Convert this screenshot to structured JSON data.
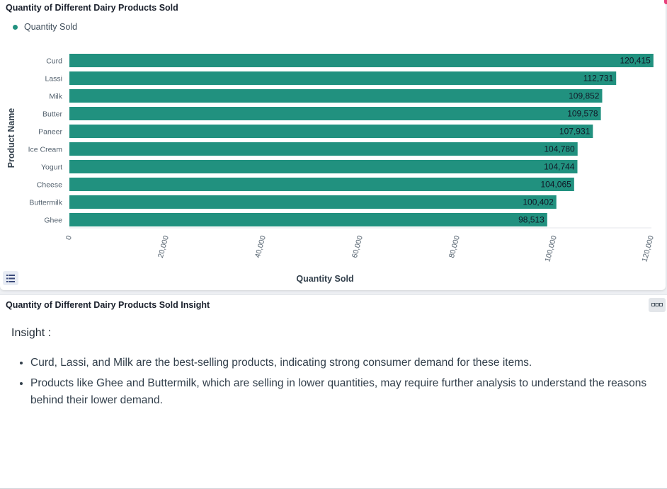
{
  "chart_panel": {
    "title": "Quantity of Different Dairy Products Sold"
  },
  "chart_data": {
    "type": "bar",
    "orientation": "horizontal",
    "title": "Quantity of Different Dairy Products Sold",
    "xlabel": "Quantity Sold",
    "ylabel": "Product Name",
    "categories": [
      "Curd",
      "Lassi",
      "Milk",
      "Butter",
      "Paneer",
      "Ice Cream",
      "Yogurt",
      "Cheese",
      "Buttermilk",
      "Ghee"
    ],
    "series": [
      {
        "name": "Quantity Sold",
        "values": [
          120415,
          112731,
          109852,
          109578,
          107931,
          104780,
          104744,
          104065,
          100402,
          98513
        ],
        "labels": [
          "120,415",
          "112,731",
          "109,852",
          "109,578",
          "107,931",
          "104,780",
          "104,744",
          "104,065",
          "100,402",
          "98,513"
        ]
      }
    ],
    "xlim": [
      0,
      120000
    ],
    "xticks": [
      0,
      20000,
      40000,
      60000,
      80000,
      100000,
      120000
    ],
    "xtick_labels": [
      "0",
      "20,000",
      "40,000",
      "60,000",
      "80,000",
      "100,000",
      "120,000"
    ],
    "color": "#21917f",
    "legend": "top-left",
    "grid": false
  },
  "insight_panel": {
    "title": "Quantity of Different Dairy Products Sold Insight",
    "heading": "Insight :",
    "bullets": [
      "Curd, Lassi, and Milk are the best-selling products, indicating strong consumer demand for these items.",
      "Products like Ghee and Buttermilk, which are selling in lower quantities, may require further analysis to understand the reasons behind their lower demand."
    ]
  },
  "icons": {
    "list_toggle": "list-icon",
    "more_options": "more-options-icon"
  }
}
